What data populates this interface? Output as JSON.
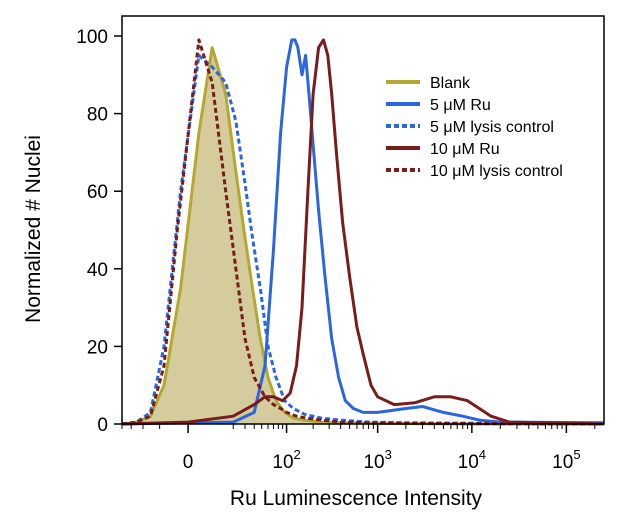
{
  "chart_data": {
    "type": "line",
    "title": "",
    "xlabel": "Ru Luminescence Intensity",
    "ylabel": "Normalized # Nuclei",
    "x_scale": "biexponential",
    "ylim": [
      0,
      100
    ],
    "y_ticks": [
      {
        "value": 0,
        "label": "0"
      },
      {
        "value": 20,
        "label": "20"
      },
      {
        "value": 40,
        "label": "40"
      },
      {
        "value": 60,
        "label": "60"
      },
      {
        "value": 80,
        "label": "80"
      },
      {
        "value": 100,
        "label": "100"
      }
    ],
    "x_ticks": [
      {
        "value": 0,
        "base": "0",
        "exp": ""
      },
      {
        "value": 100,
        "base": "10",
        "exp": "2"
      },
      {
        "value": 1000,
        "base": "10",
        "exp": "3"
      },
      {
        "value": 10000,
        "base": "10",
        "exp": "4"
      },
      {
        "value": 100000,
        "base": "10",
        "exp": "5"
      }
    ],
    "legend_position": "top-right",
    "series": [
      {
        "name": "Blank",
        "color": "#b5a830",
        "style": "solid",
        "fill": "#d4cc9c",
        "x": [
          -40,
          -25,
          -15,
          -8,
          -2,
          3,
          8,
          15,
          22,
          30,
          38,
          48,
          60,
          75,
          95,
          120,
          160,
          250,
          400,
          800,
          2000,
          10000,
          250000
        ],
        "y": [
          0,
          0.5,
          2,
          10,
          35,
          75,
          97,
          85,
          65,
          48,
          35,
          22,
          12,
          6,
          3,
          1.5,
          1,
          0.5,
          0.3,
          0.2,
          0.1,
          0,
          0
        ]
      },
      {
        "name": "5 μM Ru",
        "color": "#2a66e0",
        "style": "solid",
        "x": [
          -40,
          20,
          40,
          55,
          70,
          85,
          100,
          115,
          125,
          135,
          150,
          165,
          180,
          200,
          230,
          270,
          320,
          380,
          450,
          550,
          700,
          1000,
          2000,
          3000,
          5000,
          8000,
          12000,
          20000,
          250000
        ],
        "y": [
          0,
          0.5,
          3,
          15,
          45,
          75,
          92,
          99,
          99,
          97,
          90,
          95,
          85,
          72,
          55,
          38,
          22,
          12,
          6,
          4,
          3,
          3,
          4,
          4.5,
          3,
          2,
          1,
          0.5,
          0.3
        ]
      },
      {
        "name": "5 μM lysis control",
        "color": "#2a66e0",
        "style": "dotted",
        "x": [
          -40,
          -25,
          -15,
          -8,
          -2,
          3,
          8,
          15,
          22,
          30,
          38,
          48,
          60,
          75,
          95,
          120,
          160,
          250,
          400,
          800,
          2000,
          10000,
          250000
        ],
        "y": [
          0,
          0.5,
          3,
          20,
          60,
          95,
          92,
          88,
          78,
          62,
          48,
          35,
          20,
          12,
          6,
          4,
          2.5,
          1.5,
          1,
          0.5,
          0.3,
          0.2,
          0
        ]
      },
      {
        "name": "10 μM Ru",
        "color": "#7a1c1c",
        "style": "solid",
        "x": [
          -40,
          0,
          20,
          40,
          55,
          70,
          90,
          110,
          130,
          150,
          175,
          200,
          230,
          260,
          290,
          320,
          360,
          420,
          500,
          600,
          700,
          850,
          1000,
          1500,
          2500,
          4000,
          6000,
          9000,
          12000,
          16000,
          25000,
          250000
        ],
        "y": [
          0,
          0.5,
          2,
          5,
          7,
          7,
          6,
          8,
          15,
          30,
          60,
          85,
          97,
          99,
          95,
          85,
          70,
          52,
          38,
          25,
          18,
          10,
          7,
          5,
          5.5,
          7,
          7,
          6,
          4,
          2,
          0.5,
          0
        ]
      },
      {
        "name": "10 μM lysis control",
        "color": "#7a1c1c",
        "style": "dotted",
        "x": [
          -40,
          -25,
          -15,
          -8,
          -3,
          3,
          8,
          15,
          22,
          30,
          40,
          55,
          70,
          85,
          100,
          130,
          170,
          250,
          400,
          800,
          2000,
          10000,
          250000
        ],
        "y": [
          0,
          0.5,
          2,
          15,
          50,
          99,
          88,
          60,
          40,
          22,
          12,
          7,
          5,
          4,
          3,
          2,
          1.5,
          1,
          0.5,
          0.3,
          0.2,
          0.1,
          0
        ]
      }
    ]
  }
}
